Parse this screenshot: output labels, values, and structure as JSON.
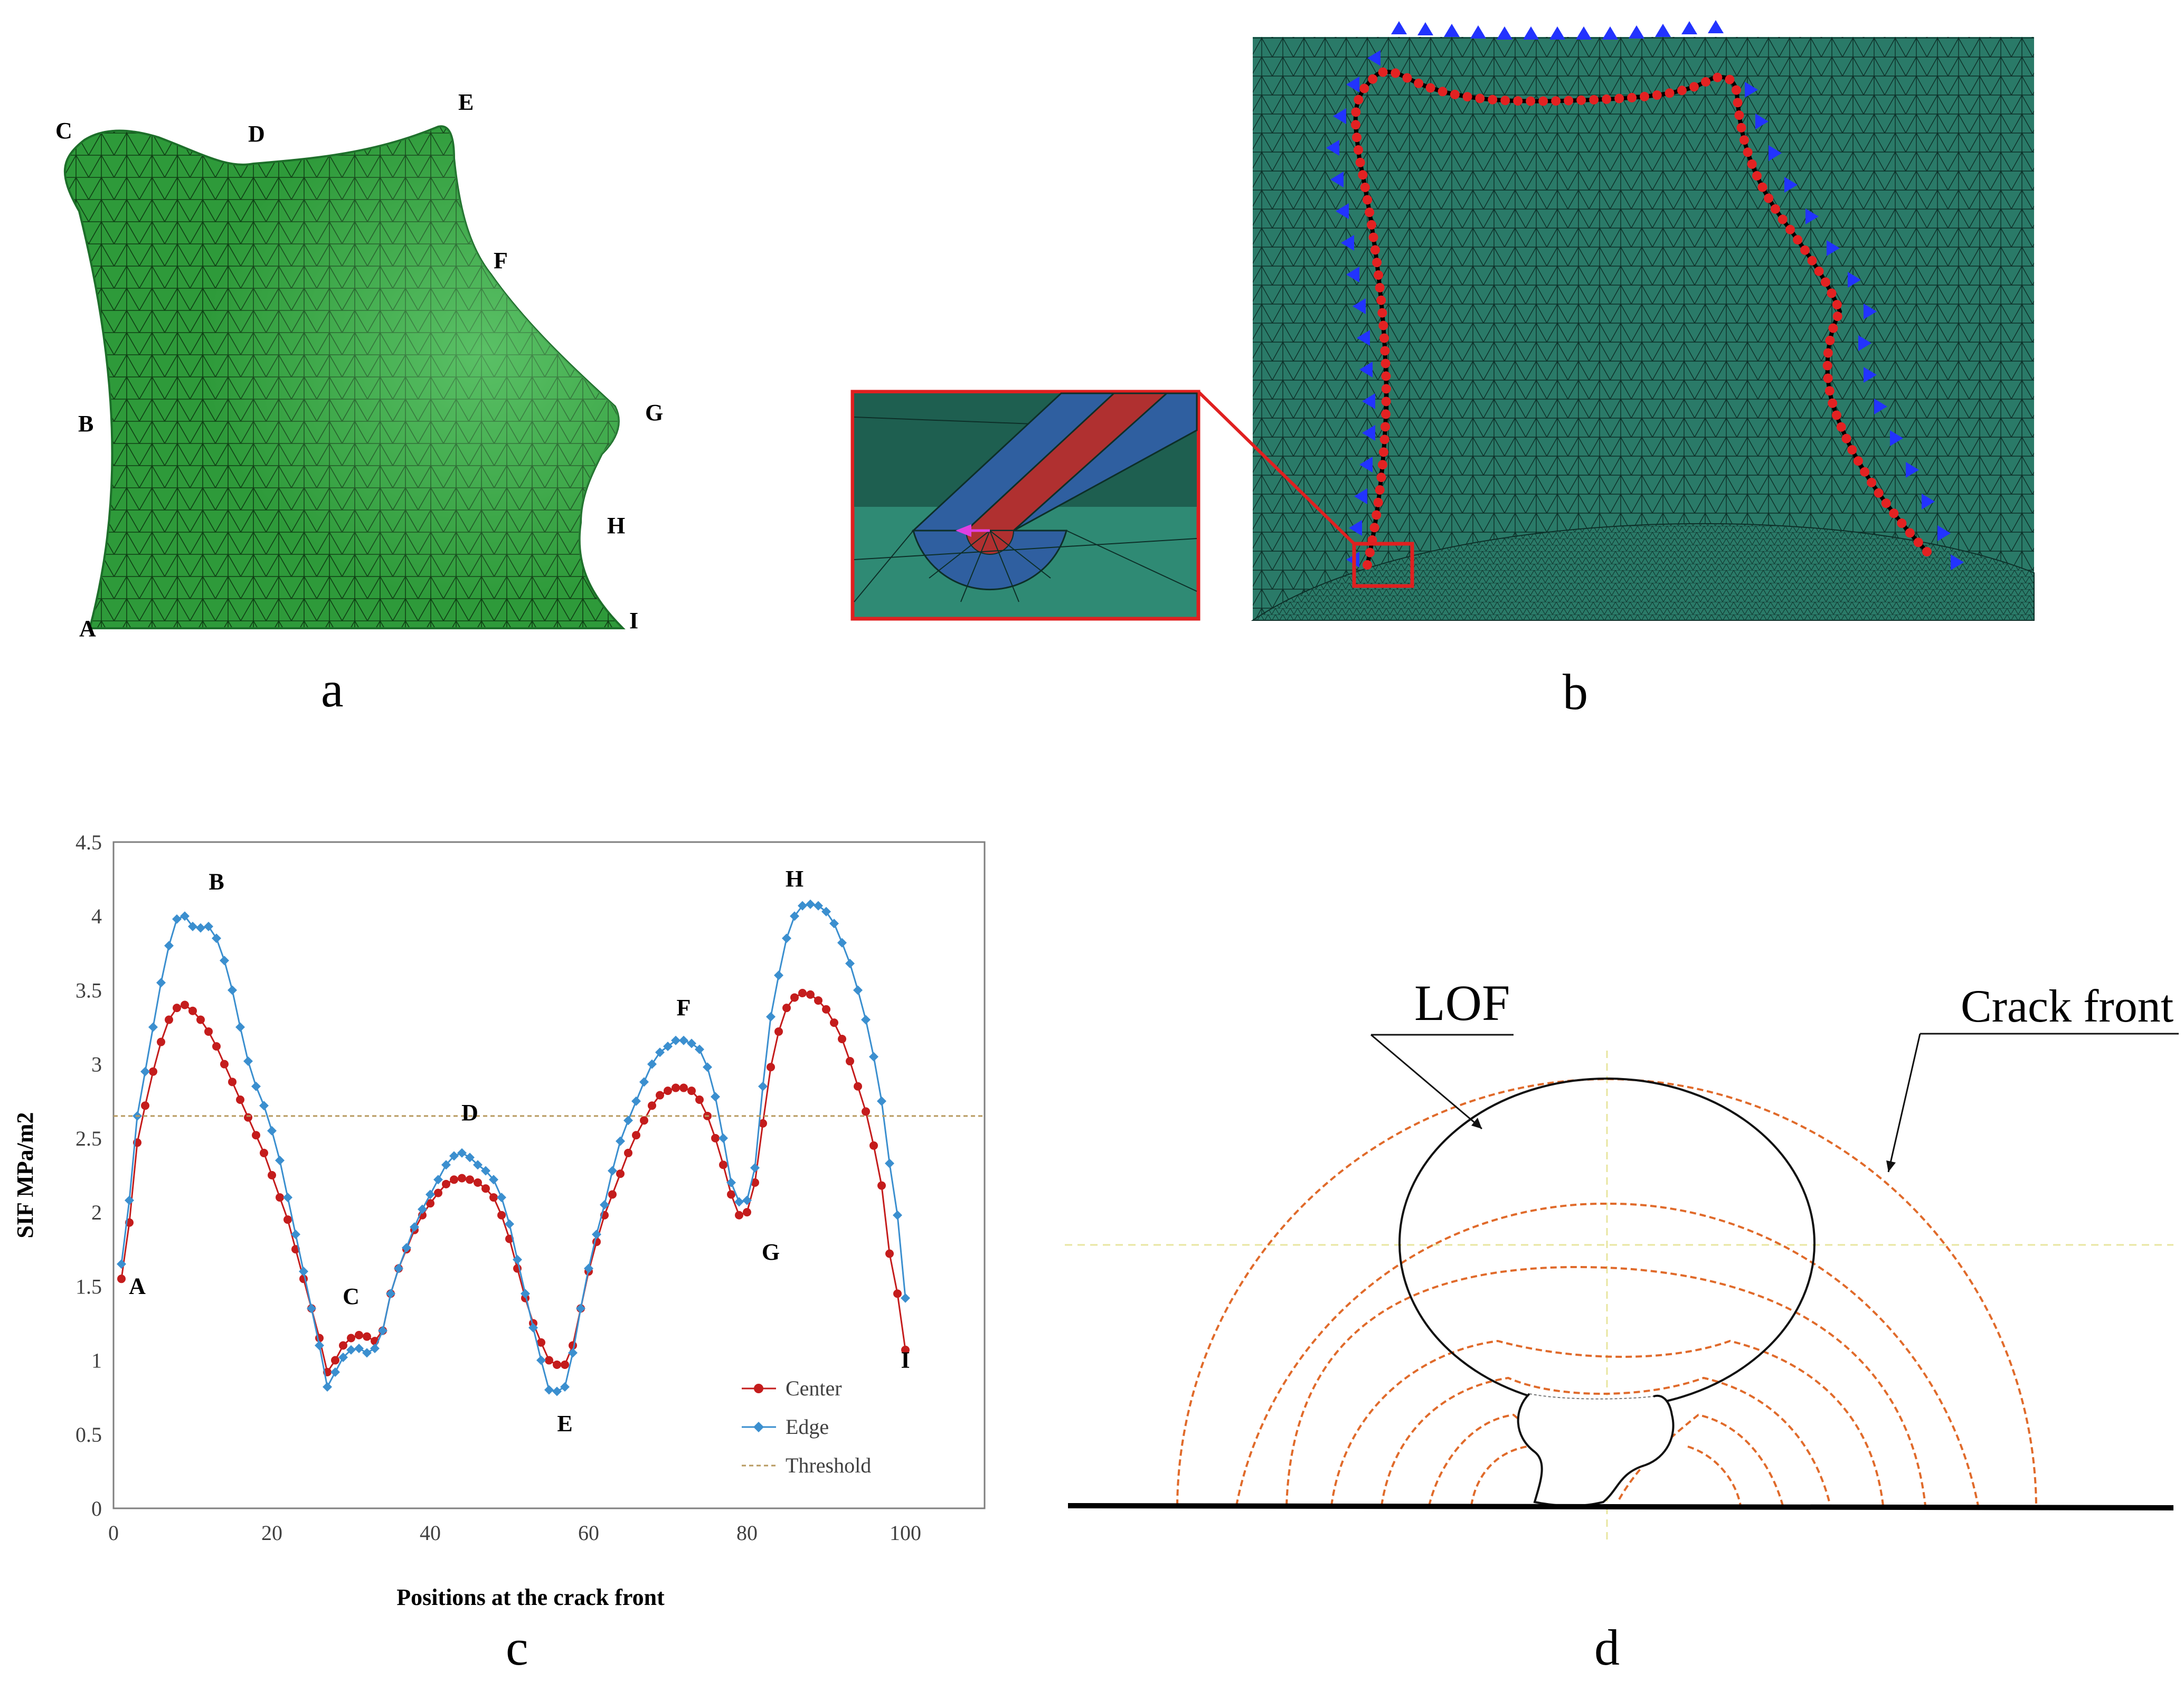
{
  "colors": {
    "mesh_green": "#2e9a3a",
    "mesh_dark": "#1d6f2a",
    "fem_teal": "#2a7a68",
    "crack_red": "#e32222",
    "arrow_blue": "#2233ff",
    "center_series": "#c41c1c",
    "edge_series": "#3b8fcf",
    "threshold": "#b89a60",
    "crack_front_orange": "#e06a2a",
    "guide_yellow": "#e8e6a0",
    "callout_red": "#e02020",
    "inset_blue": "#2f5fa0",
    "inset_red": "#b03030"
  },
  "panel_a": {
    "label": "a",
    "points": {
      "A": "A",
      "B": "B",
      "C": "C",
      "D": "D",
      "E": "E",
      "F": "F",
      "G": "G",
      "H": "H",
      "I": "I"
    }
  },
  "panel_b": {
    "label": "b"
  },
  "panel_c": {
    "label": "c"
  },
  "panel_d": {
    "label": "d",
    "lof_label": "LOF",
    "crack_front_label": "Crack front"
  },
  "chart_data": {
    "type": "line",
    "xlabel": "Positions at the crack front",
    "ylabel": "SIF MPa/m2",
    "xlim": [
      0,
      110
    ],
    "ylim": [
      0,
      4.5
    ],
    "x_ticks": [
      "0",
      "20",
      "40",
      "60",
      "80",
      "100"
    ],
    "y_ticks": [
      "0",
      "0.5",
      "1",
      "1.5",
      "2",
      "2.5",
      "3",
      "3.5",
      "4",
      "4.5"
    ],
    "grid": false,
    "legend_position": "bottom-right",
    "point_labels": [
      {
        "label": "A",
        "x": 3,
        "y": 1.45
      },
      {
        "label": "B",
        "x": 13,
        "y": 4.18
      },
      {
        "label": "C",
        "x": 30,
        "y": 1.38
      },
      {
        "label": "D",
        "x": 45,
        "y": 2.62
      },
      {
        "label": "E",
        "x": 57,
        "y": 0.52
      },
      {
        "label": "F",
        "x": 72,
        "y": 3.33
      },
      {
        "label": "G",
        "x": 83,
        "y": 1.68
      },
      {
        "label": "H",
        "x": 86,
        "y": 4.2
      },
      {
        "label": "I",
        "x": 100,
        "y": 0.95
      }
    ],
    "series": [
      {
        "name": "Center",
        "marker": "circle",
        "points": [
          [
            1,
            1.55
          ],
          [
            2,
            1.93
          ],
          [
            3,
            2.47
          ],
          [
            4,
            2.72
          ],
          [
            5,
            2.95
          ],
          [
            6,
            3.15
          ],
          [
            7,
            3.3
          ],
          [
            8,
            3.38
          ],
          [
            9,
            3.4
          ],
          [
            10,
            3.36
          ],
          [
            11,
            3.3
          ],
          [
            12,
            3.22
          ],
          [
            13,
            3.12
          ],
          [
            14,
            3.0
          ],
          [
            15,
            2.88
          ],
          [
            16,
            2.76
          ],
          [
            17,
            2.64
          ],
          [
            18,
            2.52
          ],
          [
            19,
            2.4
          ],
          [
            20,
            2.25
          ],
          [
            21,
            2.1
          ],
          [
            22,
            1.95
          ],
          [
            23,
            1.75
          ],
          [
            24,
            1.55
          ],
          [
            25,
            1.35
          ],
          [
            26,
            1.15
          ],
          [
            27,
            0.92
          ],
          [
            28,
            1.0
          ],
          [
            29,
            1.1
          ],
          [
            30,
            1.15
          ],
          [
            31,
            1.17
          ],
          [
            32,
            1.16
          ],
          [
            33,
            1.13
          ],
          [
            34,
            1.2
          ],
          [
            35,
            1.45
          ],
          [
            36,
            1.62
          ],
          [
            37,
            1.75
          ],
          [
            38,
            1.88
          ],
          [
            39,
            1.98
          ],
          [
            40,
            2.06
          ],
          [
            41,
            2.13
          ],
          [
            42,
            2.19
          ],
          [
            43,
            2.22
          ],
          [
            44,
            2.23
          ],
          [
            45,
            2.22
          ],
          [
            46,
            2.2
          ],
          [
            47,
            2.16
          ],
          [
            48,
            2.1
          ],
          [
            49,
            1.98
          ],
          [
            50,
            1.82
          ],
          [
            51,
            1.62
          ],
          [
            52,
            1.42
          ],
          [
            53,
            1.25
          ],
          [
            54,
            1.12
          ],
          [
            55,
            1.0
          ],
          [
            56,
            0.97
          ],
          [
            57,
            0.97
          ],
          [
            58,
            1.1
          ],
          [
            59,
            1.35
          ],
          [
            60,
            1.6
          ],
          [
            61,
            1.8
          ],
          [
            62,
            1.98
          ],
          [
            63,
            2.12
          ],
          [
            64,
            2.26
          ],
          [
            65,
            2.4
          ],
          [
            66,
            2.52
          ],
          [
            67,
            2.62
          ],
          [
            68,
            2.72
          ],
          [
            69,
            2.79
          ],
          [
            70,
            2.82
          ],
          [
            71,
            2.84
          ],
          [
            72,
            2.84
          ],
          [
            73,
            2.82
          ],
          [
            74,
            2.76
          ],
          [
            75,
            2.65
          ],
          [
            76,
            2.5
          ],
          [
            77,
            2.32
          ],
          [
            78,
            2.12
          ],
          [
            79,
            1.98
          ],
          [
            80,
            2.0
          ],
          [
            81,
            2.2
          ],
          [
            82,
            2.6
          ],
          [
            83,
            2.98
          ],
          [
            84,
            3.22
          ],
          [
            85,
            3.38
          ],
          [
            86,
            3.45
          ],
          [
            87,
            3.48
          ],
          [
            88,
            3.47
          ],
          [
            89,
            3.43
          ],
          [
            90,
            3.37
          ],
          [
            91,
            3.28
          ],
          [
            92,
            3.17
          ],
          [
            93,
            3.02
          ],
          [
            94,
            2.85
          ],
          [
            95,
            2.68
          ],
          [
            96,
            2.45
          ],
          [
            97,
            2.18
          ],
          [
            98,
            1.72
          ],
          [
            99,
            1.45
          ],
          [
            100,
            1.07
          ]
        ]
      },
      {
        "name": "Edge",
        "marker": "diamond",
        "points": [
          [
            1,
            1.65
          ],
          [
            2,
            2.08
          ],
          [
            3,
            2.65
          ],
          [
            4,
            2.95
          ],
          [
            5,
            3.25
          ],
          [
            6,
            3.55
          ],
          [
            7,
            3.8
          ],
          [
            8,
            3.98
          ],
          [
            9,
            4.0
          ],
          [
            10,
            3.93
          ],
          [
            11,
            3.92
          ],
          [
            12,
            3.93
          ],
          [
            13,
            3.85
          ],
          [
            14,
            3.7
          ],
          [
            15,
            3.5
          ],
          [
            16,
            3.25
          ],
          [
            17,
            3.02
          ],
          [
            18,
            2.85
          ],
          [
            19,
            2.72
          ],
          [
            20,
            2.55
          ],
          [
            21,
            2.35
          ],
          [
            22,
            2.1
          ],
          [
            23,
            1.85
          ],
          [
            24,
            1.6
          ],
          [
            25,
            1.35
          ],
          [
            26,
            1.1
          ],
          [
            27,
            0.82
          ],
          [
            28,
            0.92
          ],
          [
            29,
            1.02
          ],
          [
            30,
            1.07
          ],
          [
            31,
            1.08
          ],
          [
            32,
            1.05
          ],
          [
            33,
            1.08
          ],
          [
            34,
            1.2
          ],
          [
            35,
            1.45
          ],
          [
            36,
            1.62
          ],
          [
            37,
            1.76
          ],
          [
            38,
            1.9
          ],
          [
            39,
            2.02
          ],
          [
            40,
            2.12
          ],
          [
            41,
            2.22
          ],
          [
            42,
            2.32
          ],
          [
            43,
            2.38
          ],
          [
            44,
            2.4
          ],
          [
            45,
            2.37
          ],
          [
            46,
            2.32
          ],
          [
            47,
            2.28
          ],
          [
            48,
            2.22
          ],
          [
            49,
            2.1
          ],
          [
            50,
            1.92
          ],
          [
            51,
            1.68
          ],
          [
            52,
            1.45
          ],
          [
            53,
            1.22
          ],
          [
            54,
            1.0
          ],
          [
            55,
            0.8
          ],
          [
            56,
            0.79
          ],
          [
            57,
            0.82
          ],
          [
            58,
            1.05
          ],
          [
            59,
            1.35
          ],
          [
            60,
            1.62
          ],
          [
            61,
            1.85
          ],
          [
            62,
            2.05
          ],
          [
            63,
            2.28
          ],
          [
            64,
            2.48
          ],
          [
            65,
            2.62
          ],
          [
            66,
            2.75
          ],
          [
            67,
            2.88
          ],
          [
            68,
            3.0
          ],
          [
            69,
            3.08
          ],
          [
            70,
            3.12
          ],
          [
            71,
            3.16
          ],
          [
            72,
            3.16
          ],
          [
            73,
            3.14
          ],
          [
            74,
            3.1
          ],
          [
            75,
            2.98
          ],
          [
            76,
            2.78
          ],
          [
            77,
            2.5
          ],
          [
            78,
            2.2
          ],
          [
            79,
            2.07
          ],
          [
            80,
            2.08
          ],
          [
            81,
            2.3
          ],
          [
            82,
            2.85
          ],
          [
            83,
            3.32
          ],
          [
            84,
            3.6
          ],
          [
            85,
            3.85
          ],
          [
            86,
            4.0
          ],
          [
            87,
            4.07
          ],
          [
            88,
            4.08
          ],
          [
            89,
            4.07
          ],
          [
            90,
            4.03
          ],
          [
            91,
            3.95
          ],
          [
            92,
            3.82
          ],
          [
            93,
            3.68
          ],
          [
            94,
            3.5
          ],
          [
            95,
            3.3
          ],
          [
            96,
            3.05
          ],
          [
            97,
            2.75
          ],
          [
            98,
            2.33
          ],
          [
            99,
            1.98
          ],
          [
            100,
            1.42
          ]
        ]
      },
      {
        "name": "Threshold",
        "style": "dashed",
        "points": [
          [
            0,
            2.65
          ],
          [
            110,
            2.65
          ]
        ]
      }
    ]
  }
}
